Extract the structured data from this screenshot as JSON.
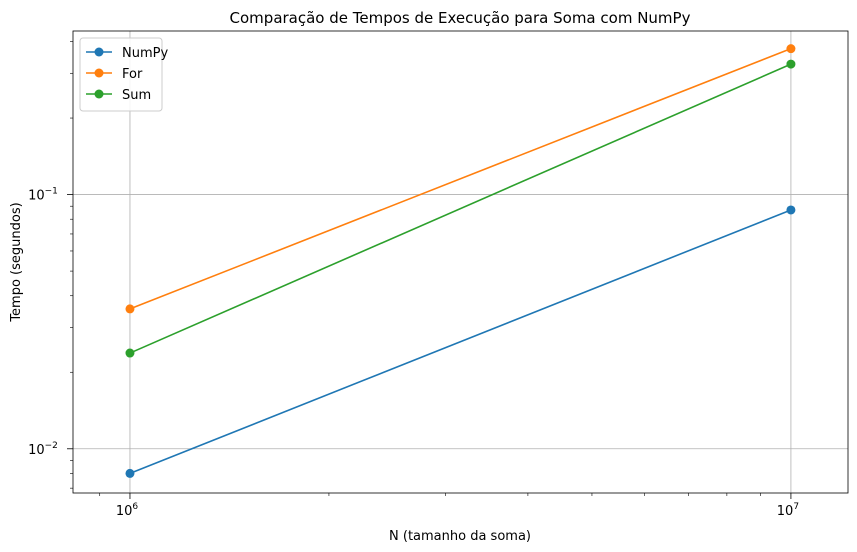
{
  "chart_data": {
    "type": "line",
    "title": "Comparação de Tempos de Execução para Soma com NumPy",
    "xlabel": "N (tamanho da soma)",
    "ylabel": "Tempo (segundos)",
    "x_scale": "log",
    "y_scale": "log",
    "xlim": [
      820000,
      12200000
    ],
    "ylim": [
      0.0067,
      0.44
    ],
    "grid": true,
    "legend_position": "top-left",
    "x_major_ticks": [
      {
        "value": 1000000,
        "base": "10",
        "exp": "6"
      },
      {
        "value": 10000000,
        "base": "10",
        "exp": "7"
      }
    ],
    "y_major_ticks": [
      {
        "value": 0.01,
        "base": "10",
        "exp": "−2"
      },
      {
        "value": 0.1,
        "base": "10",
        "exp": "−1"
      }
    ],
    "x": [
      1000000,
      10000000
    ],
    "series": [
      {
        "name": "NumPy",
        "color": "#1f77b4",
        "values": [
          0.008,
          0.087
        ]
      },
      {
        "name": "For",
        "color": "#ff7f0e",
        "values": [
          0.0355,
          0.375
        ]
      },
      {
        "name": "Sum",
        "color": "#2ca02c",
        "values": [
          0.0238,
          0.326
        ]
      }
    ]
  }
}
